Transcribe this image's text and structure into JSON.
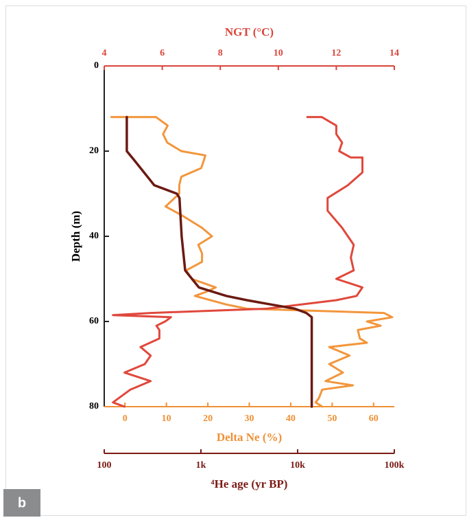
{
  "chart_data": {
    "type": "line",
    "panel_label": "b",
    "ylabel": "Depth (m)",
    "ylim": [
      0,
      80
    ],
    "y_inverted": true,
    "yticks": [
      0,
      20,
      40,
      60,
      80
    ],
    "x_axes": [
      {
        "label": "NGT (°C)",
        "position": "top",
        "color": "#d9453b",
        "log": false,
        "xlim": [
          4,
          14
        ],
        "xticks": [
          4,
          6,
          8,
          10,
          12,
          14
        ]
      },
      {
        "label": "Delta Ne (%)",
        "position": "bottom",
        "color": "#ef9035",
        "log": false,
        "xlim": [
          -5,
          65
        ],
        "xticks": [
          0,
          10,
          20,
          30,
          40,
          50,
          60
        ]
      },
      {
        "label": "⁴He age (yr BP)",
        "position": "bottom",
        "color": "#7a1a14",
        "log": true,
        "xlim": [
          100,
          100000
        ],
        "xticks": [
          {
            "value": 100,
            "label": "100"
          },
          {
            "value": 1000,
            "label": "1k"
          },
          {
            "value": 10000,
            "label": "10k"
          },
          {
            "value": 100000,
            "label": "100k"
          }
        ]
      }
    ],
    "series": [
      {
        "axis": 1,
        "color": "#f2963c",
        "depth": [
          12,
          12,
          14,
          16,
          18,
          20,
          21,
          22,
          24,
          26,
          28,
          30,
          33,
          35,
          38,
          40,
          42,
          44,
          46,
          48,
          50,
          52,
          53,
          54,
          56,
          57,
          58,
          59,
          60,
          61,
          62,
          64,
          65,
          66,
          68,
          70,
          72,
          74,
          75,
          76,
          78,
          79,
          80
        ],
        "values": [
          -3.3,
          7.5,
          10.3,
          9.2,
          10.2,
          13.6,
          19.4,
          19.1,
          18.4,
          13.6,
          13.1,
          13.1,
          9.8,
          13.6,
          18.6,
          21.0,
          17.7,
          18.6,
          18.6,
          14.8,
          16.1,
          21.9,
          19.7,
          16.9,
          24.4,
          29.4,
          62.5,
          64.5,
          58.4,
          61.7,
          56.2,
          56.7,
          58.4,
          49.3,
          54.2,
          49.3,
          52.6,
          48.4,
          55.0,
          47.6,
          46.8,
          46.0,
          47.6
        ]
      },
      {
        "axis": 0,
        "color": "#e0483c",
        "depth": [
          12,
          12,
          14,
          16,
          18,
          20,
          21.5,
          21.5,
          22,
          25,
          28,
          31,
          34,
          38,
          42,
          45,
          48,
          50,
          52,
          54,
          55,
          57,
          58,
          58.5,
          59,
          60,
          61,
          62,
          64,
          66,
          68,
          70,
          72,
          74,
          76,
          78,
          79,
          80
        ],
        "values": [
          11.0,
          11.5,
          12.0,
          12.0,
          12.2,
          12.1,
          12.5,
          12.9,
          12.9,
          12.9,
          12.4,
          11.7,
          11.7,
          12.2,
          12.6,
          12.5,
          12.6,
          12.0,
          12.9,
          12.7,
          12.0,
          9.6,
          5.6,
          4.3,
          6.3,
          6.1,
          5.8,
          5.9,
          5.9,
          5.25,
          5.6,
          5.4,
          4.7,
          5.6,
          4.9,
          4.5,
          4.3,
          4.7
        ]
      },
      {
        "axis": 2,
        "color": "#6b1a12",
        "depth": [
          12,
          20,
          22,
          26,
          28,
          30,
          31,
          40,
          48,
          52,
          54,
          55,
          56,
          57,
          58,
          59,
          60,
          80
        ],
        "values": [
          171,
          171,
          202,
          280,
          329,
          565,
          600,
          632,
          687,
          952,
          1830,
          2990,
          5270,
          9360,
          12300,
          14000,
          14000,
          14000
        ]
      }
    ]
  }
}
